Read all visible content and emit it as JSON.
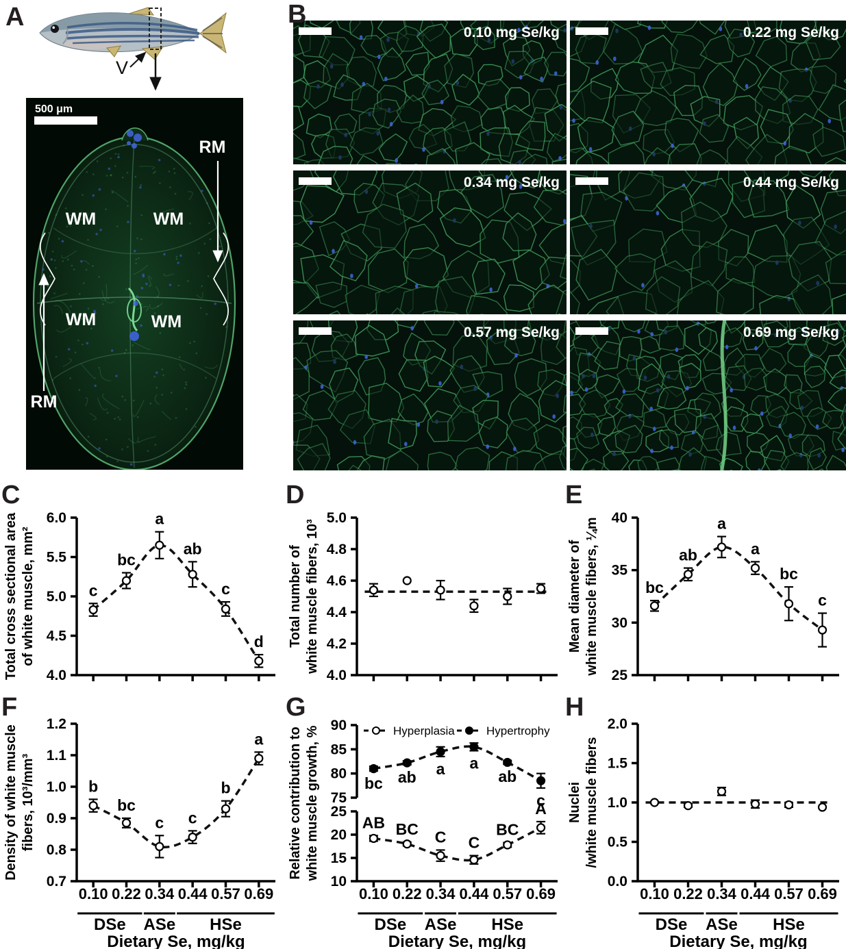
{
  "panels": {
    "A": {
      "letter": "A",
      "v_label": "V",
      "scale_bar": "500 μm",
      "rm_label": "RM",
      "wm_label": "WM"
    },
    "B": {
      "letter": "B",
      "images": [
        {
          "label": "0.10 mg Se/kg"
        },
        {
          "label": "0.22 mg Se/kg"
        },
        {
          "label": "0.34 mg Se/kg"
        },
        {
          "label": "0.44 mg Se/kg"
        },
        {
          "label": "0.57 mg Se/kg"
        },
        {
          "label": "0.69 mg Se/kg"
        }
      ]
    },
    "C": {
      "letter": "C"
    },
    "D": {
      "letter": "D"
    },
    "E": {
      "letter": "E"
    },
    "F": {
      "letter": "F"
    },
    "G": {
      "letter": "G"
    },
    "H": {
      "letter": "H"
    }
  },
  "axis": {
    "xticklabels": [
      "0.10",
      "0.22",
      "0.34",
      "0.44",
      "0.57",
      "0.69"
    ],
    "groups": [
      {
        "label": "DSe",
        "from": 0,
        "to": 1
      },
      {
        "label": "ASe",
        "from": 2,
        "to": 2
      },
      {
        "label": "HSe",
        "from": 3,
        "to": 5
      }
    ],
    "xlabel": "Dietary Se, mg/kg"
  },
  "colors": {
    "membrane_green": "#46a05f",
    "nucleus_blue": "#3f63d8",
    "axis_black": "#000000",
    "background": "#ffffff",
    "micrograph_bg": "#04120b"
  },
  "chart_data": [
    {
      "id": "C",
      "type": "scatter",
      "ylabel_lines": [
        "Total cross sectional area",
        "of white muscle, mm²"
      ],
      "ylim": [
        4.0,
        6.0
      ],
      "yticks": [
        4.0,
        4.5,
        5.0,
        5.5,
        6.0
      ],
      "yticklabels": [
        "4.0",
        "4.5",
        "5.0",
        "5.5",
        "6.0"
      ],
      "x": [
        0.1,
        0.22,
        0.34,
        0.44,
        0.57,
        0.69
      ],
      "series": [
        {
          "name": "mean",
          "marker": "open",
          "values": [
            4.83,
            5.2,
            5.65,
            5.28,
            4.84,
            4.18
          ],
          "errors": [
            0.08,
            0.1,
            0.17,
            0.16,
            0.09,
            0.08
          ],
          "sig": [
            "c",
            "bc",
            "a",
            "ab",
            "c",
            "d"
          ],
          "sig_side": "above",
          "trend": "smooth"
        }
      ],
      "show_x_axis_labels": false
    },
    {
      "id": "D",
      "type": "scatter",
      "ylabel_lines": [
        "Total number of",
        "white muscle fibers, 10³"
      ],
      "ylim": [
        4.0,
        5.0
      ],
      "yticks": [
        4.0,
        4.2,
        4.4,
        4.6,
        4.8,
        5.0
      ],
      "yticklabels": [
        "4.0",
        "4.2",
        "4.4",
        "4.6",
        "4.8",
        "5.0"
      ],
      "x": [
        0.1,
        0.22,
        0.34,
        0.44,
        0.57,
        0.69
      ],
      "series": [
        {
          "name": "mean",
          "marker": "open",
          "values": [
            4.54,
            4.6,
            4.54,
            4.44,
            4.5,
            4.55
          ],
          "errors": [
            0.04,
            0,
            0.06,
            0.04,
            0.05,
            0.03
          ],
          "sig": null,
          "trend": "flat",
          "trend_value": 4.53
        }
      ],
      "show_x_axis_labels": false
    },
    {
      "id": "E",
      "type": "scatter",
      "ylabel_lines": [
        "Mean diameter of",
        "white muscle fibers, ¼m"
      ],
      "ylim": [
        25,
        40
      ],
      "yticks": [
        25,
        30,
        35,
        40
      ],
      "yticklabels": [
        "25",
        "30",
        "35",
        "40"
      ],
      "x": [
        0.1,
        0.22,
        0.34,
        0.44,
        0.57,
        0.69
      ],
      "series": [
        {
          "name": "mean",
          "marker": "open",
          "values": [
            31.6,
            34.6,
            37.2,
            35.2,
            31.8,
            29.3
          ],
          "errors": [
            0.5,
            0.6,
            1.0,
            0.6,
            1.6,
            1.6
          ],
          "sig": [
            "bc",
            "ab",
            "a",
            "a",
            "bc",
            "c"
          ],
          "sig_side": "above",
          "trend": "smooth"
        }
      ],
      "show_x_axis_labels": false
    },
    {
      "id": "F",
      "type": "scatter",
      "ylabel_lines": [
        "Density of white muscle",
        "fibers, 10³/mm³"
      ],
      "ylim": [
        0.7,
        1.2
      ],
      "yticks": [
        0.7,
        0.8,
        0.9,
        1.0,
        1.1,
        1.2
      ],
      "yticklabels": [
        "0.7",
        "0.8",
        "0.9",
        "1.0",
        "1.1",
        "1.2"
      ],
      "x": [
        0.1,
        0.22,
        0.34,
        0.44,
        0.57,
        0.69
      ],
      "series": [
        {
          "name": "mean",
          "marker": "open",
          "values": [
            0.94,
            0.885,
            0.81,
            0.84,
            0.93,
            1.09
          ],
          "errors": [
            0.02,
            0.015,
            0.035,
            0.02,
            0.025,
            0.02
          ],
          "sig": [
            "b",
            "bc",
            "c",
            "c",
            "b",
            "a"
          ],
          "sig_side": "above",
          "trend": "smooth"
        }
      ],
      "show_x_axis_labels": true
    },
    {
      "id": "G",
      "type": "scatter-broken-axis",
      "ylabel_lines": [
        "Relative contribution to",
        "white muscle growth, %"
      ],
      "segments": [
        {
          "ylim": [
            75,
            90
          ],
          "yticks": [
            75,
            80,
            85,
            90
          ],
          "yticklabels": [
            "75",
            "80",
            "85",
            "90"
          ]
        },
        {
          "ylim": [
            10,
            25
          ],
          "yticks": [
            10,
            15,
            20,
            25
          ],
          "yticklabels": [
            "10",
            "15",
            "20",
            "25"
          ]
        }
      ],
      "legend": [
        {
          "label": "Hyperplasia",
          "marker": "open"
        },
        {
          "label": "Hypertrophy",
          "marker": "filled"
        }
      ],
      "x": [
        0.1,
        0.22,
        0.34,
        0.44,
        0.57,
        0.69
      ],
      "series": [
        {
          "name": "Hypertrophy",
          "marker": "filled",
          "segment": 0,
          "values": [
            81.0,
            82.2,
            84.5,
            85.5,
            82.3,
            78.5
          ],
          "errors": [
            0.5,
            0.4,
            1.0,
            0.8,
            0.4,
            1.5
          ],
          "sig": [
            "bc",
            "ab",
            "a",
            "a",
            "ab",
            "c"
          ],
          "sig_side": "below",
          "trend": "smooth"
        },
        {
          "name": "Hyperplasia",
          "marker": "open",
          "segment": 1,
          "values": [
            19.2,
            18.0,
            15.5,
            14.6,
            17.8,
            21.5
          ],
          "errors": [
            0.6,
            0.4,
            1.2,
            0.9,
            0.5,
            1.3
          ],
          "sig": [
            "AB",
            "BC",
            "C",
            "C",
            "BC",
            "A"
          ],
          "sig_side": "above",
          "trend": "smooth"
        }
      ],
      "show_x_axis_labels": true
    },
    {
      "id": "H",
      "type": "scatter",
      "ylabel_lines": [
        "Nuclei",
        "/white muscle fibers"
      ],
      "ylim": [
        0.0,
        2.0
      ],
      "yticks": [
        0.0,
        0.5,
        1.0,
        1.5,
        2.0
      ],
      "yticklabels": [
        "0.0",
        "0.5",
        "1.0",
        "1.5",
        "2.0"
      ],
      "x": [
        0.1,
        0.22,
        0.34,
        0.44,
        0.57,
        0.69
      ],
      "series": [
        {
          "name": "mean",
          "marker": "open",
          "values": [
            1.0,
            0.96,
            1.14,
            0.98,
            0.97,
            0.94
          ],
          "errors": [
            0.01,
            0.02,
            0.05,
            0.05,
            0.03,
            0
          ],
          "sig": null,
          "trend": "flat",
          "trend_value": 1.0
        }
      ],
      "show_x_axis_labels": true
    }
  ]
}
